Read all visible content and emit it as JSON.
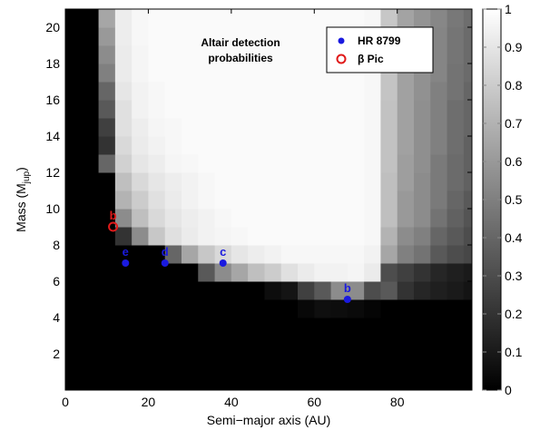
{
  "chart_data": {
    "type": "heatmap",
    "annotation_lines": [
      "Altair detection",
      "probabilities"
    ],
    "xlabel": "Semi−major axis (AU)",
    "ylabel_main": "Mass (M",
    "ylabel_sub": "jup",
    "ylabel_end": ")",
    "xlim": [
      0,
      98
    ],
    "ylim": [
      0,
      21
    ],
    "x_ticks": [
      0,
      20,
      40,
      60,
      80
    ],
    "x_tick_labels": [
      "0",
      "20",
      "40",
      "60",
      "80"
    ],
    "y_ticks": [
      2,
      4,
      6,
      8,
      10,
      12,
      14,
      16,
      18,
      20
    ],
    "y_tick_labels": [
      "2",
      "4",
      "6",
      "8",
      "10",
      "12",
      "14",
      "16",
      "18",
      "20"
    ],
    "colorbar": {
      "range": [
        0,
        1
      ],
      "ticks": [
        0,
        0.1,
        0.2,
        0.3,
        0.4,
        0.5,
        0.6,
        0.7,
        0.8,
        0.9,
        1
      ],
      "tick_labels": [
        "0",
        "0.1",
        "0.2",
        "0.3",
        "0.4",
        "0.5",
        "0.6",
        "0.7",
        "0.8",
        "0.9",
        "1"
      ]
    },
    "cell_width": 4,
    "cell_height": 1,
    "x_start": 0,
    "y_start": 0,
    "grid": [
      [
        0,
        0,
        0,
        0,
        0,
        0,
        0,
        0,
        0,
        0,
        0,
        0,
        0,
        0,
        0,
        0,
        0,
        0,
        0,
        0,
        0,
        0,
        0,
        0,
        0
      ],
      [
        0,
        0,
        0,
        0,
        0,
        0,
        0,
        0,
        0,
        0,
        0,
        0,
        0,
        0,
        0,
        0,
        0,
        0,
        0,
        0,
        0,
        0,
        0,
        0,
        0
      ],
      [
        0,
        0,
        0,
        0,
        0,
        0,
        0,
        0,
        0,
        0,
        0,
        0,
        0,
        0,
        0,
        0,
        0,
        0,
        0,
        0,
        0,
        0,
        0,
        0,
        0
      ],
      [
        0,
        0,
        0,
        0,
        0,
        0,
        0,
        0,
        0,
        0,
        0,
        0,
        0,
        0,
        0,
        0,
        0,
        0,
        0,
        0,
        0,
        0,
        0,
        0,
        0
      ],
      [
        0,
        0,
        0,
        0,
        0,
        0,
        0,
        0,
        0,
        0,
        0,
        0,
        0,
        0,
        0.03,
        0.06,
        0.05,
        0.04,
        0.02,
        0,
        0,
        0,
        0,
        0,
        0
      ],
      [
        0,
        0,
        0,
        0,
        0,
        0,
        0,
        0,
        0,
        0,
        0,
        0,
        0.05,
        0.08,
        0.25,
        0.35,
        0.55,
        0.55,
        0.3,
        0.35,
        0.2,
        0.15,
        0.12,
        0.1,
        0.08
      ],
      [
        0,
        0,
        0,
        0,
        0,
        0,
        0,
        0,
        0.35,
        0.55,
        0.65,
        0.75,
        0.8,
        0.88,
        0.92,
        0.95,
        0.95,
        0.96,
        0.92,
        0.3,
        0.25,
        0.2,
        0.15,
        0.12,
        0.1
      ],
      [
        0,
        0,
        0,
        0,
        0,
        0,
        0.4,
        0.65,
        0.78,
        0.85,
        0.9,
        0.93,
        0.95,
        0.97,
        0.97,
        0.97,
        0.97,
        0.97,
        0.95,
        0.65,
        0.5,
        0.45,
        0.35,
        0.3,
        0.28
      ],
      [
        0,
        0,
        0,
        0.2,
        0.55,
        0.78,
        0.88,
        0.92,
        0.95,
        0.96,
        0.97,
        0.98,
        0.98,
        0.98,
        0.98,
        0.98,
        0.98,
        0.98,
        0.97,
        0.7,
        0.55,
        0.5,
        0.4,
        0.35,
        0.3
      ],
      [
        0,
        0,
        0,
        0.55,
        0.75,
        0.85,
        0.9,
        0.93,
        0.95,
        0.97,
        0.98,
        0.98,
        0.98,
        0.98,
        0.98,
        0.98,
        0.98,
        0.98,
        0.97,
        0.75,
        0.6,
        0.55,
        0.45,
        0.38,
        0.33
      ],
      [
        0,
        0,
        0,
        0.7,
        0.8,
        0.88,
        0.92,
        0.95,
        0.97,
        0.98,
        0.98,
        0.98,
        0.98,
        0.98,
        0.98,
        0.98,
        0.98,
        0.98,
        0.97,
        0.75,
        0.6,
        0.55,
        0.48,
        0.4,
        0.35
      ],
      [
        0,
        0,
        0,
        0.75,
        0.85,
        0.9,
        0.93,
        0.95,
        0.97,
        0.98,
        0.98,
        0.98,
        0.98,
        0.98,
        0.98,
        0.98,
        0.98,
        0.98,
        0.97,
        0.75,
        0.62,
        0.55,
        0.48,
        0.42,
        0.38
      ],
      [
        0,
        0,
        0.4,
        0.82,
        0.9,
        0.93,
        0.96,
        0.97,
        0.98,
        0.98,
        0.98,
        0.98,
        0.98,
        0.98,
        0.98,
        0.98,
        0.98,
        0.98,
        0.97,
        0.76,
        0.62,
        0.56,
        0.48,
        0.42,
        0.38
      ],
      [
        0,
        0,
        0.2,
        0.85,
        0.92,
        0.95,
        0.97,
        0.98,
        0.98,
        0.98,
        0.98,
        0.98,
        0.98,
        0.98,
        0.98,
        0.98,
        0.98,
        0.98,
        0.97,
        0.76,
        0.63,
        0.56,
        0.5,
        0.43,
        0.38
      ],
      [
        0,
        0,
        0.25,
        0.88,
        0.93,
        0.96,
        0.97,
        0.98,
        0.98,
        0.98,
        0.98,
        0.98,
        0.98,
        0.98,
        0.98,
        0.98,
        0.98,
        0.98,
        0.97,
        0.76,
        0.63,
        0.56,
        0.5,
        0.43,
        0.4
      ],
      [
        0,
        0,
        0.35,
        0.88,
        0.95,
        0.97,
        0.98,
        0.98,
        0.98,
        0.98,
        0.98,
        0.98,
        0.98,
        0.98,
        0.98,
        0.98,
        0.98,
        0.98,
        0.97,
        0.76,
        0.63,
        0.56,
        0.5,
        0.43,
        0.4
      ],
      [
        0,
        0,
        0.4,
        0.9,
        0.95,
        0.97,
        0.98,
        0.98,
        0.98,
        0.98,
        0.98,
        0.98,
        0.98,
        0.98,
        0.98,
        0.98,
        0.98,
        0.98,
        0.97,
        0.77,
        0.63,
        0.57,
        0.5,
        0.45,
        0.4
      ],
      [
        0,
        0,
        0.5,
        0.92,
        0.96,
        0.98,
        0.98,
        0.98,
        0.98,
        0.98,
        0.98,
        0.98,
        0.98,
        0.98,
        0.98,
        0.98,
        0.98,
        0.98,
        0.97,
        0.77,
        0.63,
        0.57,
        0.52,
        0.45,
        0.42
      ],
      [
        0,
        0,
        0.55,
        0.92,
        0.96,
        0.98,
        0.98,
        0.98,
        0.98,
        0.98,
        0.98,
        0.98,
        0.98,
        0.98,
        0.98,
        0.98,
        0.98,
        0.98,
        0.97,
        0.77,
        0.64,
        0.57,
        0.52,
        0.46,
        0.42
      ],
      [
        0,
        0,
        0.6,
        0.93,
        0.97,
        0.98,
        0.98,
        0.98,
        0.98,
        0.98,
        0.98,
        0.98,
        0.98,
        0.98,
        0.98,
        0.98,
        0.98,
        0.98,
        0.97,
        0.77,
        0.64,
        0.57,
        0.52,
        0.46,
        0.42
      ],
      [
        0,
        0,
        0.65,
        0.93,
        0.97,
        0.98,
        0.98,
        0.98,
        0.98,
        0.98,
        0.98,
        0.98,
        0.98,
        0.98,
        0.98,
        0.98,
        0.98,
        0.98,
        0.97,
        0.78,
        0.64,
        0.58,
        0.53,
        0.47,
        0.43
      ]
    ],
    "legend": {
      "position": "top-right",
      "entries": [
        {
          "label": "HR 8799",
          "marker": "filled-circle",
          "color": "#1a1adf"
        },
        {
          "label": "β Pic",
          "marker": "open-circle",
          "color": "#e01a1a"
        }
      ]
    },
    "series": [
      {
        "name": "HR 8799",
        "marker": "filled-circle",
        "color": "#1a1adf",
        "points": [
          {
            "x": 14.5,
            "y": 7,
            "label": "e"
          },
          {
            "x": 24,
            "y": 7,
            "label": "d"
          },
          {
            "x": 38,
            "y": 7,
            "label": "c"
          },
          {
            "x": 68,
            "y": 5,
            "label": "b"
          }
        ]
      },
      {
        "name": "β Pic",
        "marker": "open-circle",
        "color": "#e01a1a",
        "points": [
          {
            "x": 11.5,
            "y": 9,
            "label": "b"
          }
        ]
      }
    ]
  }
}
